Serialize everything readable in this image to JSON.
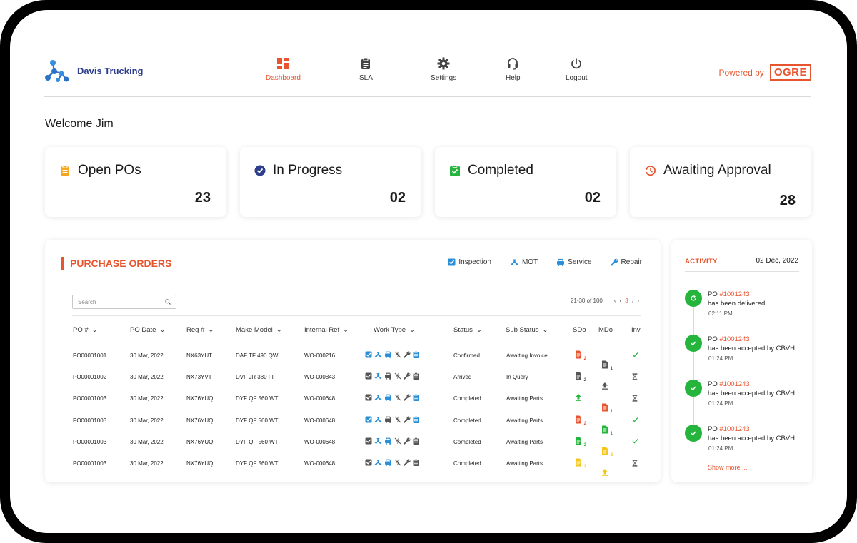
{
  "brand": {
    "name": "Davis Trucking"
  },
  "nav": [
    {
      "label": "Dashboard",
      "icon": "dashboard-icon"
    },
    {
      "label": "SLA",
      "icon": "clipboard-icon"
    },
    {
      "label": "Settings",
      "icon": "gear-icon"
    },
    {
      "label": "Help",
      "icon": "headset-icon"
    },
    {
      "label": "Logout",
      "icon": "power-icon"
    }
  ],
  "powered": {
    "label": "Powered by",
    "logo": "OGRE"
  },
  "welcome": "Welcome Jim",
  "stats": [
    {
      "label": "Open POs",
      "value": "23",
      "icon": "clipboard-icon",
      "color": "#f5a623"
    },
    {
      "label": "In Progress",
      "value": "02",
      "icon": "check-circle-icon",
      "color": "#2c3e8c"
    },
    {
      "label": "Completed",
      "value": "02",
      "icon": "check-clipboard-icon",
      "color": "#25b43c"
    },
    {
      "label": "Awaiting Approval",
      "value": "28",
      "icon": "history-icon",
      "color": "#e8542e"
    }
  ],
  "po": {
    "title": "PURCHASE ORDERS",
    "legend": [
      "Inspection",
      "MOT",
      "Service",
      "Repair"
    ],
    "search_placeholder": "Search",
    "pager": {
      "range": "21-30 of 100",
      "current": "3"
    },
    "columns": [
      "PO #",
      "PO Date",
      "Reg #",
      "Make Model",
      "Internal Ref",
      "Work Type",
      "Status",
      "Sub Status",
      "SDo",
      "MDo",
      "Inv"
    ],
    "rows": [
      {
        "po": "PO00001001",
        "date": "30 Mar, 2022",
        "reg": "NX63YUT",
        "model": "DAF TF 490 QW",
        "ref": "WO-000216",
        "status": "Confirmed",
        "sub": "Awaiting Invoice",
        "sdo": "doc-red-2",
        "mdo": "doc-grey-1",
        "inv": "check"
      },
      {
        "po": "PO00001002",
        "date": "30 Mar, 2022",
        "reg": "NX73YVT",
        "model": "DVF JR 380 FI",
        "ref": "WO-000843",
        "status": "Arrived",
        "sub": "In Query",
        "sdo": "doc-grey-2",
        "mdo": "upload-grey",
        "inv": "hourglass"
      },
      {
        "po": "PO00001003",
        "date": "30 Mar, 2022",
        "reg": "NX76YUQ",
        "model": "DYF QF 560 WT",
        "ref": "WO-000648",
        "status": "Completed",
        "sub": "Awaiting Parts",
        "sdo": "upload-green",
        "mdo": "doc-red-1",
        "inv": "hourglass"
      },
      {
        "po": "PO00001003",
        "date": "30 Mar, 2022",
        "reg": "NX76YUQ",
        "model": "DYF QF 560 WT",
        "ref": "WO-000648",
        "status": "Completed",
        "sub": "Awaiting Parts",
        "sdo": "doc-red-2",
        "mdo": "doc-green-1",
        "inv": "check"
      },
      {
        "po": "PO00001003",
        "date": "30 Mar, 2022",
        "reg": "NX76YUQ",
        "model": "DYF QF 560 WT",
        "ref": "WO-000648",
        "status": "Completed",
        "sub": "Awaiting Parts",
        "sdo": "doc-green-2",
        "mdo": "doc-yellow-2",
        "inv": "check"
      },
      {
        "po": "PO00001003",
        "date": "30 Mar, 2022",
        "reg": "NX76YUQ",
        "model": "DYF QF 560 WT",
        "ref": "WO-000648",
        "status": "Completed",
        "sub": "Awaiting Parts",
        "sdo": "doc-yellow-2",
        "mdo": "upload-yellow",
        "inv": "hourglass"
      }
    ]
  },
  "activity": {
    "title": "ACTIVITY",
    "date": "02 Dec, 2022",
    "items": [
      {
        "prefix": "PO",
        "po": "#1001243",
        "text": "has been delivered",
        "time": "02:11 PM"
      },
      {
        "prefix": "PO",
        "po": "#1001243",
        "text": "has been accepted by CBVH",
        "time": "01:24 PM"
      },
      {
        "prefix": "PO",
        "po": "#1001243",
        "text": "has been accepted by CBVH",
        "time": "01:24 PM"
      },
      {
        "prefix": "PO",
        "po": "#1001243",
        "text": "has been accepted by CBVH",
        "time": "01:24 PM"
      }
    ],
    "show_more": "Show more ..."
  },
  "colors": {
    "accent": "#e8542e",
    "brand": "#2c3e8c",
    "success": "#25b43c",
    "blue": "#2a8fd6"
  }
}
